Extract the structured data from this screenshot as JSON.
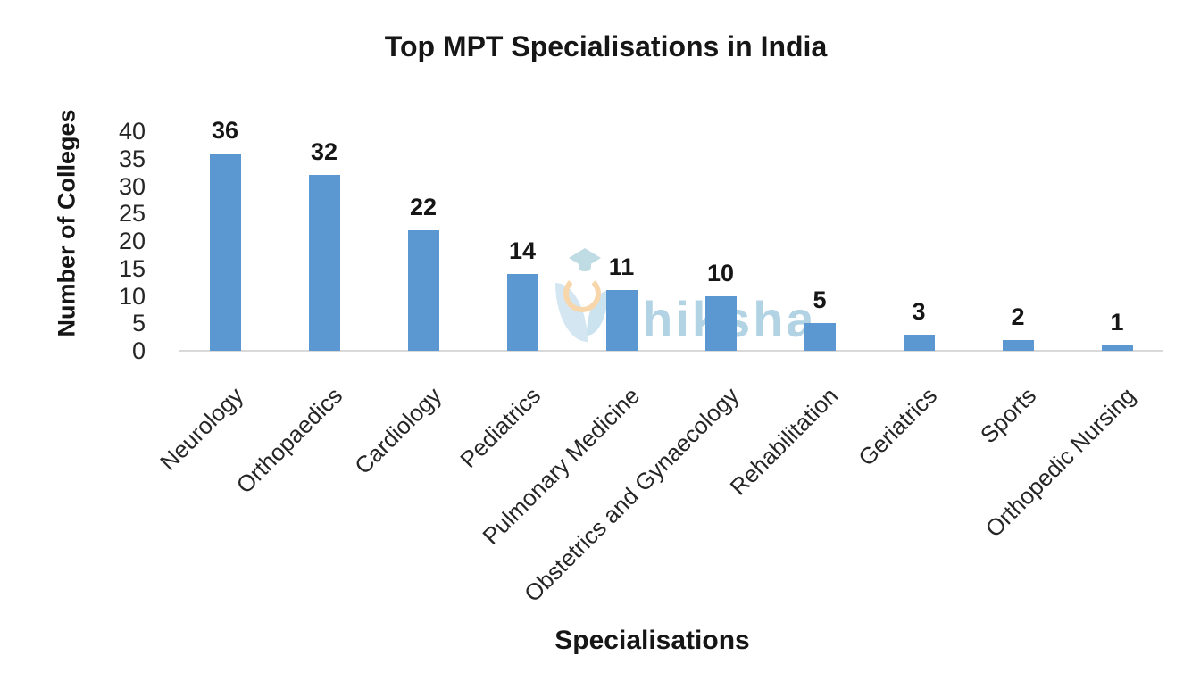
{
  "chart_data": {
    "type": "bar",
    "title": "Top MPT Specialisations in India",
    "xlabel": "Specialisations",
    "ylabel": "Number of Colleges",
    "categories": [
      "Neurology",
      "Orthopaedics",
      "Cardiology",
      "Pediatrics",
      "Pulmonary Medicine",
      "Obstetrics and Gynaecology",
      "Rehabilitation",
      "Geriatrics",
      "Sports",
      "Orthopedic Nursing"
    ],
    "values": [
      36,
      32,
      22,
      14,
      11,
      10,
      5,
      3,
      2,
      1
    ],
    "yticks": [
      0,
      5,
      10,
      15,
      20,
      25,
      30,
      35,
      40
    ],
    "ylim": [
      0,
      40
    ],
    "grid": false,
    "legend_position": "none",
    "data_labels": true,
    "bar_color": "#5b98d2",
    "axis_line_color": "#d9d9d9"
  },
  "watermark": {
    "text": "shiksha",
    "color": "#a9cfe2",
    "logo_icon": "shiksha-graduation-cap-quill"
  }
}
